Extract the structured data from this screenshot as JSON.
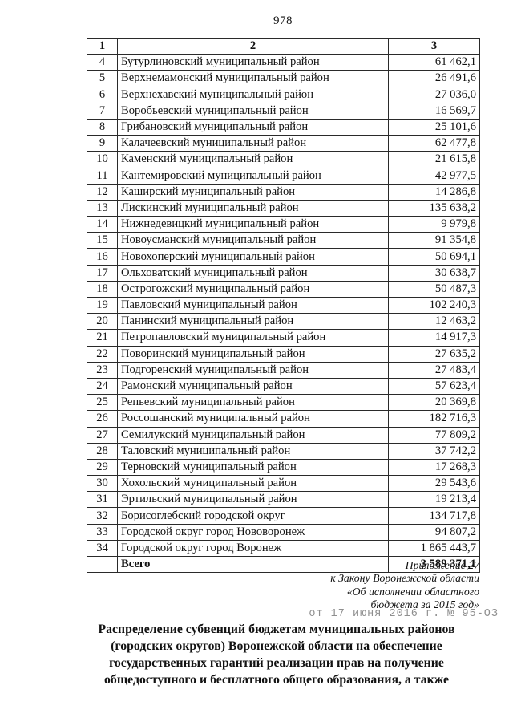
{
  "page": {
    "number": "978"
  },
  "table": {
    "headers": [
      "1",
      "2",
      "3"
    ],
    "rows": [
      {
        "num": "4",
        "name": "Бутурлиновский муниципальный район",
        "value": "61 462,1"
      },
      {
        "num": "5",
        "name": "Верхнемамонский муниципальный район",
        "value": "26 491,6"
      },
      {
        "num": "6",
        "name": "Верхнехавский муниципальный район",
        "value": "27 036,0"
      },
      {
        "num": "7",
        "name": "Воробьевский муниципальный район",
        "value": "16 569,7"
      },
      {
        "num": "8",
        "name": "Грибановский муниципальный район",
        "value": "25 101,6"
      },
      {
        "num": "9",
        "name": "Калачеевский муниципальный район",
        "value": "62 477,8"
      },
      {
        "num": "10",
        "name": "Каменский муниципальный район",
        "value": "21 615,8"
      },
      {
        "num": "11",
        "name": "Кантемировский муниципальный район",
        "value": "42 977,5"
      },
      {
        "num": "12",
        "name": "Каширский муниципальный район",
        "value": "14 286,8"
      },
      {
        "num": "13",
        "name": "Лискинский муниципальный район",
        "value": "135 638,2"
      },
      {
        "num": "14",
        "name": "Нижнедевицкий муниципальный район",
        "value": "9 979,8"
      },
      {
        "num": "15",
        "name": "Новоусманский муниципальный район",
        "value": "91 354,8"
      },
      {
        "num": "16",
        "name": "Новохоперский муниципальный район",
        "value": "50 694,1"
      },
      {
        "num": "17",
        "name": "Ольховатский муниципальный район",
        "value": "30 638,7"
      },
      {
        "num": "18",
        "name": "Острогожский муниципальный район",
        "value": "50 487,3"
      },
      {
        "num": "19",
        "name": "Павловский муниципальный район",
        "value": "102 240,3"
      },
      {
        "num": "20",
        "name": "Панинский муниципальный район",
        "value": "12 463,2"
      },
      {
        "num": "21",
        "name": "Петропавловский муниципальный район",
        "value": "14 917,3"
      },
      {
        "num": "22",
        "name": "Поворинский муниципальный район",
        "value": "27 635,2"
      },
      {
        "num": "23",
        "name": "Подгоренский муниципальный район",
        "value": "27 483,4"
      },
      {
        "num": "24",
        "name": "Рамонский муниципальный район",
        "value": "57 623,4"
      },
      {
        "num": "25",
        "name": "Репьевский муниципальный район",
        "value": "20 369,8"
      },
      {
        "num": "26",
        "name": "Россошанский муниципальный район",
        "value": "182 716,3"
      },
      {
        "num": "27",
        "name": "Семилукский муниципальный район",
        "value": "77 809,2"
      },
      {
        "num": "28",
        "name": "Таловский муниципальный район",
        "value": "37 742,2"
      },
      {
        "num": "29",
        "name": "Терновский муниципальный район",
        "value": "17 268,3"
      },
      {
        "num": "30",
        "name": "Хохольский муниципальный район",
        "value": "29 543,6"
      },
      {
        "num": "31",
        "name": "Эртильский муниципальный район",
        "value": "19 213,4"
      },
      {
        "num": "32",
        "name": "Борисоглебский городской округ",
        "value": "134 717,8"
      },
      {
        "num": "33",
        "name": "Городской округ город Нововоронеж",
        "value": "94 807,2"
      },
      {
        "num": "34",
        "name": "Городской округ город Воронеж",
        "value": "1 865 443,7"
      }
    ],
    "total": {
      "label": "Всего",
      "value": "3 589 371,1"
    }
  },
  "appendix": {
    "lines": [
      "Приложение 27",
      "к Закону Воронежской области",
      "«Об исполнении областного",
      "бюджета за 2015 год»"
    ]
  },
  "stamp": {
    "text": "от 17 июня 2016 г. № 95-ОЗ"
  },
  "heading": {
    "lines": [
      "Распределение субвенций бюджетам муниципальных районов",
      "(городских округов) Воронежской области на обеспечение",
      "государственных гарантий реализации прав на получение",
      "общедоступного и бесплатного общего образования, а также"
    ]
  },
  "colors": {
    "text": "#121212",
    "stamp": "#8f8f8f",
    "border": "#2a2a2a",
    "background": "#ffffff"
  }
}
